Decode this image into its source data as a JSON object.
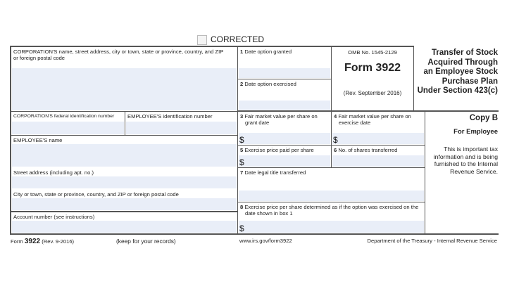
{
  "corrected": {
    "label": "CORRECTED",
    "checked": false
  },
  "left": {
    "corp_name": "CORPORATION'S name, street address, city or town, state or province, country, and ZIP or foreign postal code",
    "corp_id": "CORPORATION'S federal identification number",
    "emp_id": "EMPLOYEE'S identification number",
    "emp_name": "EMPLOYEE'S name",
    "street": "Street address (including apt. no.)",
    "city": "City or town, state or province, country, and ZIP or foreign postal code",
    "account": "Account number (see instructions)"
  },
  "boxes": {
    "b1": {
      "num": "1",
      "label": "Date option granted"
    },
    "b2": {
      "num": "2",
      "label": "Date option exercised"
    },
    "b3": {
      "num": "3",
      "label": "Fair market value per share on grant date",
      "prefix": "$"
    },
    "b4": {
      "num": "4",
      "label": "Fair market value per share on exercise date",
      "prefix": "$"
    },
    "b5": {
      "num": "5",
      "label": "Exercise price paid per share",
      "prefix": "$"
    },
    "b6": {
      "num": "6",
      "label": "No. of shares transferred"
    },
    "b7": {
      "num": "7",
      "label": "Date legal title transferred"
    },
    "b8": {
      "num": "8",
      "label": "Exercise price per share determined as if the option was exercised on the date shown in box 1",
      "prefix": "$"
    }
  },
  "omb": {
    "number": "OMB No. 1545-2129",
    "form": "Form 3922",
    "rev": "(Rev. September 2016)"
  },
  "title": "Transfer of Stock Acquired Through an Employee Stock Purchase Plan Under Section 423(c)",
  "copy": {
    "name": "Copy B",
    "for": "For Employee",
    "note": "This is important tax information and is being furnished to the Internal Revenue Service."
  },
  "footer": {
    "form_word": "Form",
    "form_num": "3922",
    "rev": "(Rev. 9-2016)",
    "keep": "(keep for your records)",
    "url": "www.irs.gov/form3922",
    "dept": "Department of the Treasury - Internal Revenue Service"
  }
}
